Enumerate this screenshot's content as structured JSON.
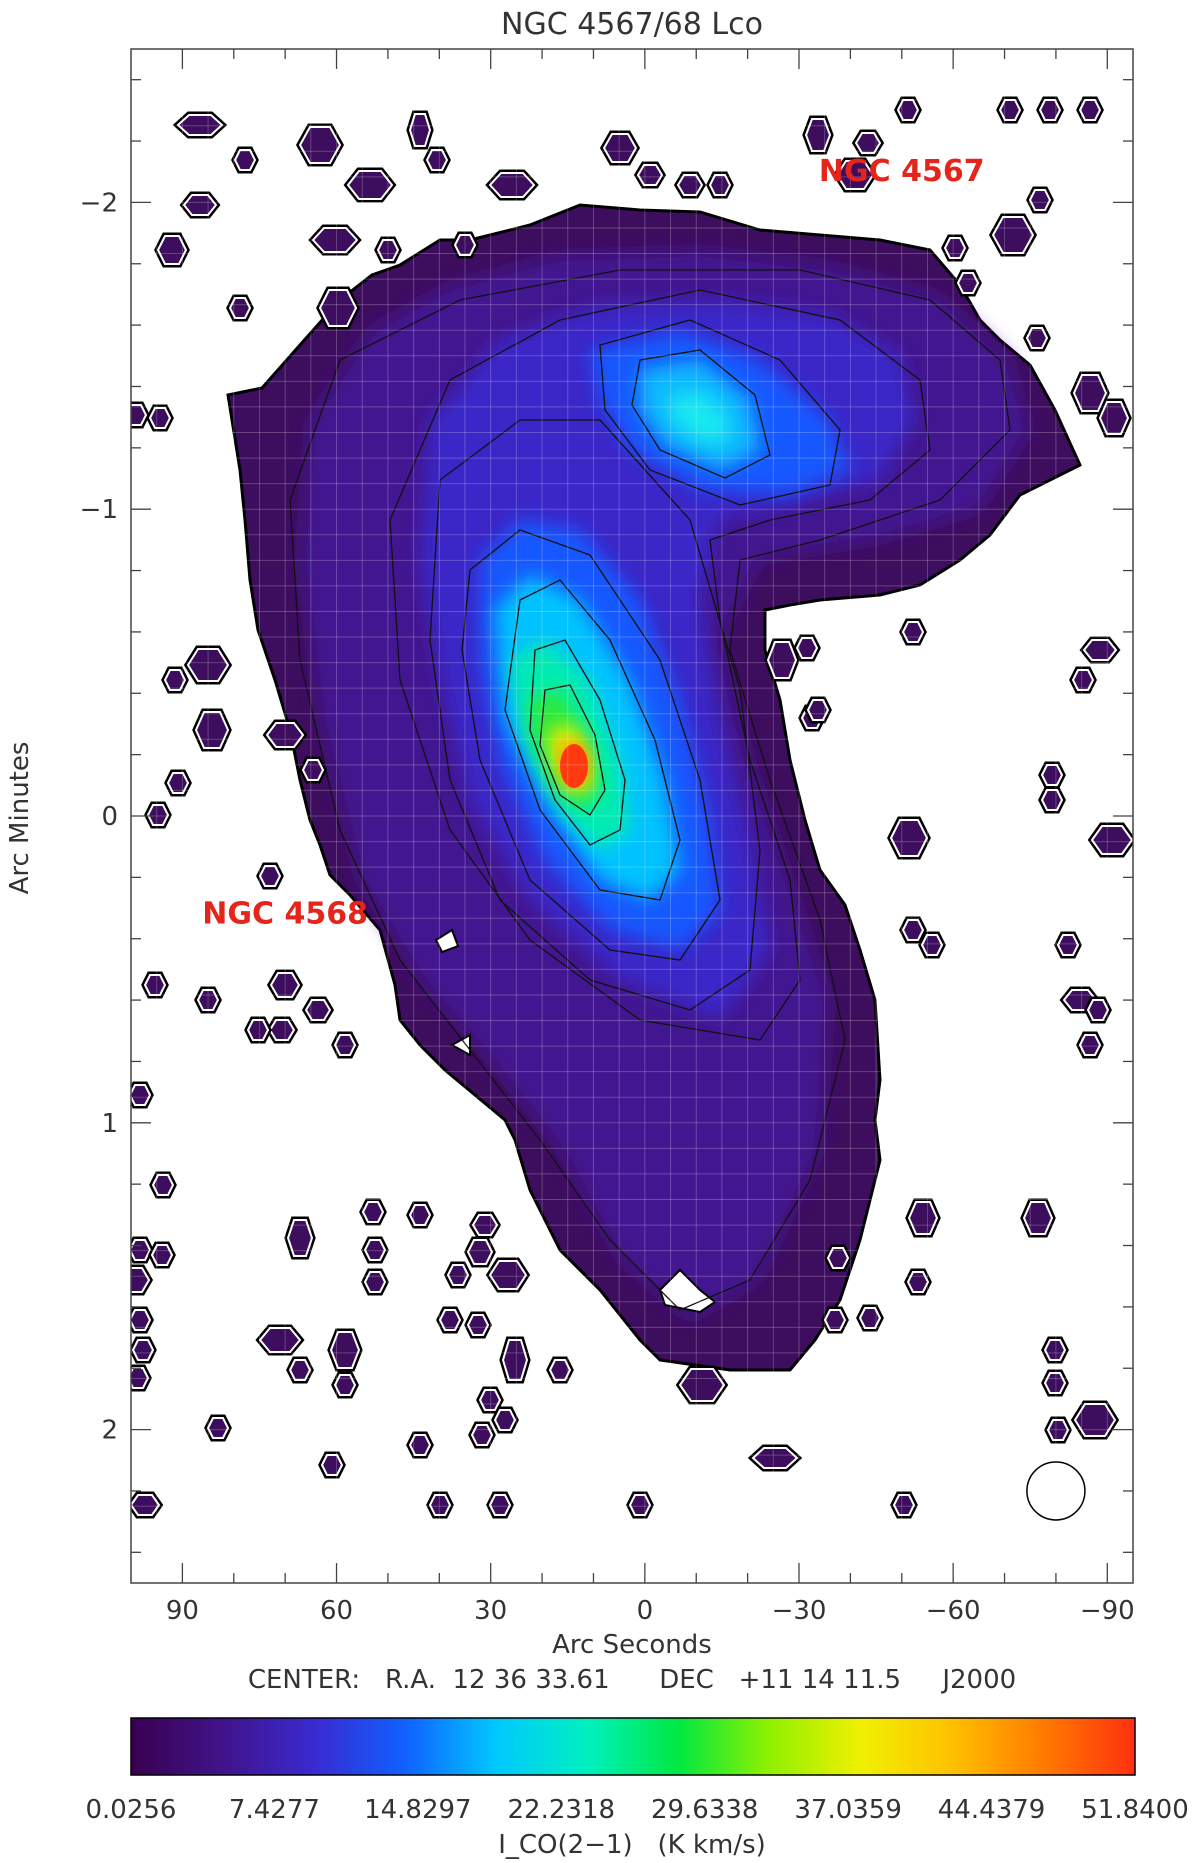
{
  "chart_data": {
    "type": "heatmap",
    "title": "NGC 4567/68 Lco",
    "xlabel": "Arc Seconds",
    "ylabel": "Arc Minutes",
    "xlim": [
      100,
      -95
    ],
    "ylim": [
      -2.5,
      2.5
    ],
    "x_ticks": [
      90,
      60,
      30,
      0,
      -30,
      -60,
      -90
    ],
    "x_tick_labels": [
      "90",
      "60",
      "30",
      "0",
      "−30",
      "−60",
      "−90"
    ],
    "y_ticks": [
      -2,
      -1,
      0,
      1,
      2
    ],
    "y_tick_labels": [
      "−2",
      "−1",
      "0",
      "1",
      "2"
    ],
    "center_label": "CENTER:   R.A.  12 36 33.61      DEC   +11 14 11.5     J2000",
    "colorbar": {
      "min": 0.0256,
      "max": 51.84,
      "tick_labels": [
        "0.0256",
        "7.4277",
        "14.8297",
        "22.2318",
        "29.6338",
        "37.0359",
        "44.4379",
        "51.8400"
      ],
      "label": "I_CO(2−1)   (K km/s)",
      "colormap": [
        "#3a0050",
        "#40138a",
        "#3a2ad0",
        "#1060ff",
        "#00c8ff",
        "#00f0c0",
        "#00e840",
        "#90f000",
        "#f0f000",
        "#ffc000",
        "#ff7a00",
        "#ff3010"
      ]
    },
    "annotations": [
      {
        "text": "NGC 4567",
        "x": -50,
        "y": -2.07
      },
      {
        "text": "NGC 4568",
        "x": 70,
        "y": 0.35
      }
    ],
    "peaks": [
      {
        "x": 14,
        "y": -0.15,
        "value": 51.84
      },
      {
        "x": -10,
        "y": -1.28,
        "value": 16.5
      }
    ],
    "grid": true,
    "beam": {
      "x": -80,
      "y": 2.2
    }
  }
}
